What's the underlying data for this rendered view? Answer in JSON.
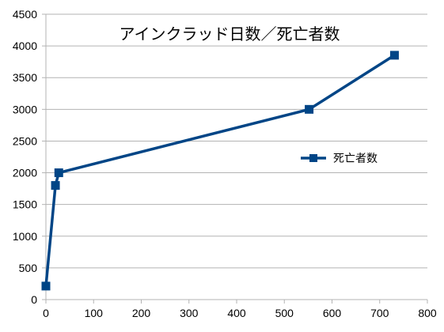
{
  "chart_data": {
    "type": "line",
    "title": "アインクラッド日数／死亡者数",
    "xlabel": "",
    "ylabel": "",
    "xlim": [
      0,
      800
    ],
    "ylim": [
      0,
      4500
    ],
    "x_ticks": [
      "0",
      "100",
      "200",
      "300",
      "400",
      "500",
      "600",
      "700",
      "800"
    ],
    "y_ticks": [
      "0",
      "500",
      "1000",
      "1500",
      "2000",
      "2500",
      "3000",
      "3500",
      "4000",
      "4500"
    ],
    "grid": true,
    "legend_position": "right",
    "series": [
      {
        "name": "死亡者数",
        "color": "#004586",
        "marker": "square",
        "points": [
          {
            "x": 0,
            "y": 213
          },
          {
            "x": 20,
            "y": 1800
          },
          {
            "x": 27,
            "y": 2000
          },
          {
            "x": 552,
            "y": 3000
          },
          {
            "x": 731,
            "y": 3853
          }
        ]
      }
    ]
  }
}
